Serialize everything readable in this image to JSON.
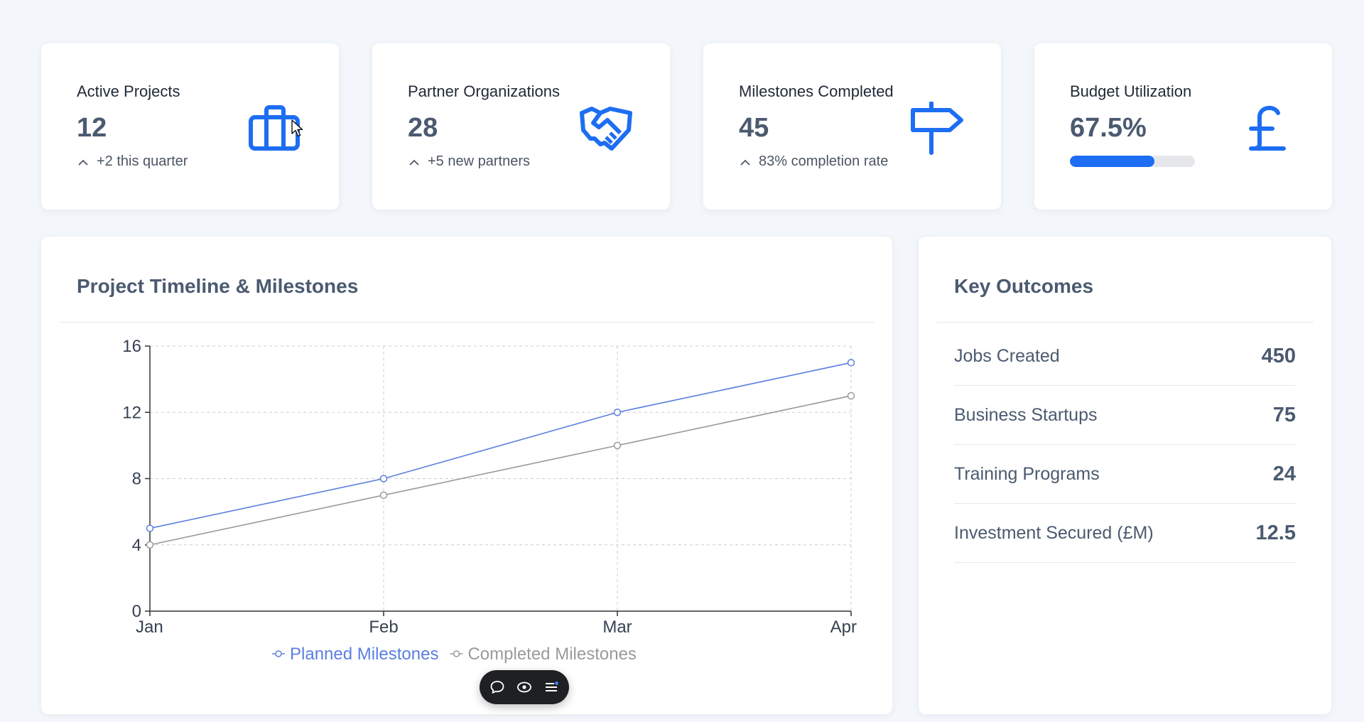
{
  "stats": [
    {
      "label": "Active Projects",
      "value": "12",
      "trend": "+2 this quarter",
      "icon": "briefcase-icon"
    },
    {
      "label": "Partner Organizations",
      "value": "28",
      "trend": "+5 new partners",
      "icon": "handshake-icon"
    },
    {
      "label": "Milestones Completed",
      "value": "45",
      "trend": "83% completion rate",
      "icon": "signpost-icon"
    },
    {
      "label": "Budget Utilization",
      "value": "67.5%",
      "progress_percent": 67.5,
      "icon": "pound-sterling-icon"
    }
  ],
  "timeline": {
    "title": "Project Timeline & Milestones"
  },
  "chart_data": {
    "type": "line",
    "title": "Project Timeline & Milestones",
    "categories": [
      "Jan",
      "Feb",
      "Mar",
      "Apr"
    ],
    "series": [
      {
        "name": "Planned Milestones",
        "values": [
          5,
          8,
          12,
          15
        ],
        "color": "#5b7fe0"
      },
      {
        "name": "Completed Milestones",
        "values": [
          4,
          7,
          10,
          13
        ],
        "color": "#9a9a9a"
      }
    ],
    "yticks": [
      0,
      4,
      8,
      12,
      16
    ],
    "ylim": [
      0,
      16
    ],
    "grid": true,
    "legend_position": "bottom"
  },
  "outcomes": {
    "title": "Key Outcomes",
    "rows": [
      {
        "label": "Jobs Created",
        "value": "450"
      },
      {
        "label": "Business Startups",
        "value": "75"
      },
      {
        "label": "Training Programs",
        "value": "24"
      },
      {
        "label": "Investment Secured (£M)",
        "value": "12.5"
      }
    ]
  },
  "colors": {
    "accent": "#1d6ef2",
    "background": "#f3f6fa",
    "toolbar": "#1f2023"
  },
  "toolbar": {
    "icons": [
      "comment-icon",
      "eye-icon",
      "menu-icon"
    ]
  }
}
